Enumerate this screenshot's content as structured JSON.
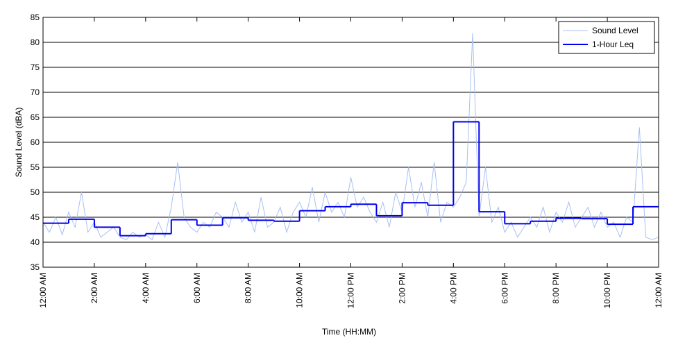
{
  "chart_data": {
    "type": "line",
    "xlabel": "Time (HH:MM)",
    "ylabel": "Sound Level (dBA)",
    "xlim": [
      0,
      24
    ],
    "ylim": [
      35,
      85
    ],
    "yticks": [
      35,
      40,
      45,
      50,
      55,
      60,
      65,
      70,
      75,
      80,
      85
    ],
    "xticks": [
      {
        "value": 0,
        "label": "12:00 AM"
      },
      {
        "value": 2,
        "label": "2:00 AM"
      },
      {
        "value": 4,
        "label": "4:00 AM"
      },
      {
        "value": 6,
        "label": "6:00 AM"
      },
      {
        "value": 8,
        "label": "8:00 AM"
      },
      {
        "value": 10,
        "label": "10:00 AM"
      },
      {
        "value": 12,
        "label": "12:00 PM"
      },
      {
        "value": 14,
        "label": "2:00 PM"
      },
      {
        "value": 16,
        "label": "4:00 PM"
      },
      {
        "value": 18,
        "label": "6:00 PM"
      },
      {
        "value": 20,
        "label": "8:00 PM"
      },
      {
        "value": 22,
        "label": "10:00 PM"
      },
      {
        "value": 24,
        "label": "12:00 AM"
      }
    ],
    "grid": true,
    "legend": "upper right",
    "series": [
      {
        "name": "Sound Level",
        "color": "#a8bff2",
        "style": "line",
        "x": [
          0,
          0.25,
          0.5,
          0.75,
          1,
          1.25,
          1.5,
          1.75,
          2,
          2.25,
          2.5,
          2.75,
          3,
          3.25,
          3.5,
          3.75,
          4,
          4.25,
          4.5,
          4.75,
          5,
          5.25,
          5.5,
          5.75,
          6,
          6.25,
          6.5,
          6.75,
          7,
          7.25,
          7.5,
          7.75,
          8,
          8.25,
          8.5,
          8.75,
          9,
          9.25,
          9.5,
          9.75,
          10,
          10.25,
          10.5,
          10.75,
          11,
          11.25,
          11.5,
          11.75,
          12,
          12.25,
          12.5,
          12.75,
          13,
          13.25,
          13.5,
          13.75,
          14,
          14.25,
          14.5,
          14.75,
          15,
          15.25,
          15.5,
          15.75,
          16,
          16.25,
          16.5,
          16.75,
          17,
          17.25,
          17.5,
          17.75,
          18,
          18.25,
          18.5,
          18.75,
          19,
          19.25,
          19.5,
          19.75,
          20,
          20.25,
          20.5,
          20.75,
          21,
          21.25,
          21.5,
          21.75,
          22,
          22.25,
          22.5,
          22.75,
          23,
          23.25,
          23.5,
          23.75,
          24
        ],
        "values": [
          44,
          42,
          45,
          41.5,
          46,
          43,
          50,
          42,
          44,
          41,
          42,
          43,
          41,
          40.5,
          42,
          41,
          41.5,
          40.5,
          44,
          41,
          47,
          56,
          45,
          43,
          42,
          44,
          43,
          46,
          45,
          43,
          48,
          44,
          46,
          42,
          49,
          43,
          44,
          47,
          42,
          46,
          48,
          45,
          51,
          44,
          50,
          46,
          48,
          45,
          53,
          47,
          49,
          46,
          44,
          48,
          43,
          50,
          46,
          55,
          47,
          52,
          45,
          56,
          44,
          48,
          47,
          49,
          52,
          81.8,
          45,
          55,
          44,
          47,
          42,
          44,
          41,
          43,
          45,
          43,
          47,
          42,
          46,
          44,
          48,
          43,
          45,
          47,
          43,
          46,
          43,
          44,
          41,
          45,
          44,
          63,
          41,
          40.5,
          41
        ]
      },
      {
        "name": "1-Hour Leq",
        "color": "#0000ee",
        "style": "step",
        "x": [
          0,
          1,
          2,
          3,
          4,
          5,
          6,
          7,
          8,
          9,
          10,
          11,
          12,
          13,
          14,
          15,
          16,
          17,
          18,
          19,
          20,
          21,
          22,
          23
        ],
        "values": [
          43.8,
          44.6,
          43.0,
          41.3,
          41.7,
          44.5,
          43.4,
          44.9,
          44.4,
          44.2,
          46.3,
          47.1,
          47.6,
          45.3,
          47.9,
          47.4,
          64.1,
          46.1,
          43.7,
          44.2,
          44.8,
          44.7,
          43.6,
          47.1
        ]
      }
    ]
  }
}
